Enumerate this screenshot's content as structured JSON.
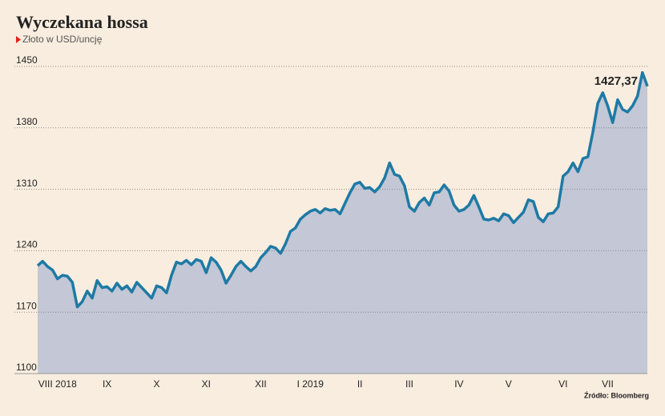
{
  "chart_data": {
    "type": "area",
    "title": "Wyczekana hossa",
    "subtitle": "Złoto w USD/uncję",
    "source": "Źródło: Bloomberg",
    "categories": [
      null,
      null,
      null,
      null,
      "VIII 2018",
      null,
      null,
      null,
      null,
      null,
      null,
      null,
      null,
      null,
      "IX",
      null,
      null,
      null,
      null,
      null,
      null,
      null,
      null,
      null,
      "X",
      null,
      null,
      null,
      null,
      null,
      null,
      null,
      null,
      null,
      "XI",
      null,
      null,
      null,
      null,
      null,
      null,
      null,
      null,
      null,
      null,
      "XII",
      null,
      null,
      null,
      null,
      null,
      null,
      null,
      null,
      null,
      "I 2019",
      null,
      null,
      null,
      null,
      null,
      null,
      null,
      null,
      null,
      "II",
      null,
      null,
      null,
      null,
      null,
      null,
      null,
      null,
      null,
      "III",
      null,
      null,
      null,
      null,
      null,
      null,
      null,
      null,
      null,
      "IV",
      null,
      null,
      null,
      null,
      null,
      null,
      null,
      null,
      null,
      "V",
      null,
      null,
      null,
      null,
      null,
      null,
      null,
      null,
      null,
      null,
      "VI",
      null,
      null,
      null,
      null,
      null,
      null,
      null,
      null,
      "VII",
      null,
      null,
      null,
      null,
      null,
      null,
      null,
      null
    ],
    "values": [
      1223,
      1228,
      1222,
      1218,
      1208,
      1212,
      1211,
      1204,
      1176,
      1182,
      1194,
      1186,
      1206,
      1198,
      1199,
      1194,
      1203,
      1196,
      1200,
      1193,
      1204,
      1198,
      1192,
      1186,
      1200,
      1198,
      1192,
      1212,
      1227,
      1225,
      1229,
      1224,
      1230,
      1228,
      1215,
      1232,
      1227,
      1218,
      1203,
      1212,
      1222,
      1228,
      1222,
      1217,
      1222,
      1232,
      1238,
      1245,
      1243,
      1237,
      1248,
      1262,
      1266,
      1276,
      1281,
      1285,
      1287,
      1283,
      1288,
      1286,
      1287,
      1282,
      1294,
      1306,
      1316,
      1318,
      1311,
      1312,
      1307,
      1313,
      1323,
      1340,
      1327,
      1325,
      1314,
      1290,
      1285,
      1295,
      1300,
      1292,
      1306,
      1307,
      1315,
      1308,
      1292,
      1285,
      1287,
      1292,
      1303,
      1290,
      1276,
      1275,
      1277,
      1274,
      1282,
      1280,
      1272,
      1278,
      1284,
      1298,
      1296,
      1278,
      1273,
      1282,
      1283,
      1290,
      1325,
      1330,
      1340,
      1330,
      1345,
      1347,
      1375,
      1408,
      1420,
      1405,
      1386,
      1412,
      1401,
      1398,
      1405,
      1416,
      1443,
      1427.37
    ],
    "value_labels": [
      null,
      null,
      null,
      null,
      null,
      null,
      null,
      null,
      null,
      null,
      null,
      null,
      null,
      null,
      null,
      null,
      null,
      null,
      null,
      null,
      null,
      null,
      null,
      null,
      null,
      null,
      null,
      null,
      null,
      null,
      null,
      null,
      null,
      null,
      null,
      null,
      null,
      null,
      null,
      null,
      null,
      null,
      null,
      null,
      null,
      null,
      null,
      null,
      null,
      null,
      null,
      null,
      null,
      null,
      null,
      null,
      null,
      null,
      null,
      null,
      null,
      null,
      null,
      null,
      null,
      null,
      null,
      null,
      null,
      null,
      null,
      null,
      null,
      null,
      null,
      null,
      null,
      null,
      null,
      null,
      null,
      null,
      null,
      null,
      null,
      null,
      null,
      null,
      null,
      null,
      null,
      null,
      null,
      null,
      null,
      null,
      null,
      null,
      null,
      null,
      null,
      null,
      null,
      null,
      null,
      null,
      null,
      null,
      null,
      null,
      null,
      null,
      null,
      null,
      null,
      null,
      null,
      null,
      null,
      null,
      null,
      null,
      null,
      "1427,37"
    ],
    "color": "#1e7aa4",
    "fill": "#c3c7d6",
    "ylim": [
      1100,
      1450
    ],
    "yticks": [
      1100,
      1170,
      1240,
      1310,
      1380,
      1450
    ],
    "grid": true
  }
}
